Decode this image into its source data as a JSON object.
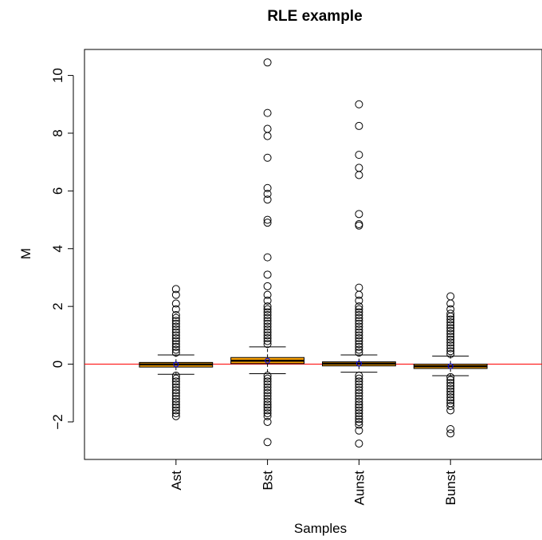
{
  "chart_data": {
    "type": "boxplot",
    "title": "RLE example",
    "xlabel": "Samples",
    "ylabel": "M",
    "ylim": [
      -3.3,
      10.9
    ],
    "xlim": [
      0,
      5
    ],
    "y_ticks": [
      -2,
      0,
      2,
      4,
      6,
      8,
      10
    ],
    "y_tick_labels": [
      "−2",
      "0",
      "2",
      "4",
      "6",
      "8",
      "10"
    ],
    "reference_line": {
      "y": 0,
      "color": "#ff0000"
    },
    "box_fill": "#ffa500",
    "median_color": "#000000",
    "mean_marker_color": "#0000ff",
    "categories": [
      "Ast",
      "Bst",
      "Aunst",
      "Bunst"
    ],
    "boxes": [
      {
        "name": "Ast",
        "whisker_low": -0.35,
        "q1": -0.1,
        "median": -0.01,
        "q3": 0.06,
        "whisker_high": 0.32,
        "outliers_high": [
          0.4,
          0.5,
          0.6,
          0.7,
          0.8,
          0.9,
          1.0,
          1.1,
          1.2,
          1.3,
          1.4,
          1.5,
          1.6,
          1.7,
          1.9,
          2.1,
          2.4,
          2.6
        ],
        "outliers_low": [
          -0.4,
          -0.5,
          -0.6,
          -0.7,
          -0.8,
          -0.9,
          -1.0,
          -1.1,
          -1.2,
          -1.3,
          -1.4,
          -1.5,
          -1.6,
          -1.7,
          -1.8
        ]
      },
      {
        "name": "Bst",
        "whisker_low": -0.33,
        "q1": 0.02,
        "median": 0.12,
        "q3": 0.23,
        "whisker_high": 0.6,
        "outliers_high": [
          0.7,
          0.8,
          0.9,
          1.0,
          1.1,
          1.2,
          1.3,
          1.4,
          1.5,
          1.6,
          1.7,
          1.8,
          1.9,
          2.0,
          2.2,
          2.4,
          2.7,
          3.1,
          3.7,
          4.9,
          5.0,
          5.7,
          5.9,
          6.1,
          7.15,
          7.9,
          8.15,
          8.7,
          10.45
        ],
        "outliers_low": [
          -0.4,
          -0.5,
          -0.6,
          -0.7,
          -0.8,
          -0.9,
          -1.0,
          -1.1,
          -1.2,
          -1.3,
          -1.4,
          -1.5,
          -1.6,
          -1.7,
          -1.8,
          -2.0,
          -2.7
        ]
      },
      {
        "name": "Aunst",
        "whisker_low": -0.28,
        "q1": -0.06,
        "median": 0.02,
        "q3": 0.08,
        "whisker_high": 0.32,
        "outliers_high": [
          0.4,
          0.5,
          0.6,
          0.7,
          0.8,
          0.9,
          1.0,
          1.1,
          1.2,
          1.3,
          1.4,
          1.5,
          1.6,
          1.7,
          1.8,
          1.9,
          2.0,
          2.2,
          2.4,
          2.65,
          4.8,
          4.85,
          5.2,
          6.55,
          6.8,
          7.25,
          8.25,
          9.0
        ],
        "outliers_low": [
          -0.4,
          -0.5,
          -0.6,
          -0.7,
          -0.8,
          -0.9,
          -1.0,
          -1.1,
          -1.2,
          -1.3,
          -1.4,
          -1.5,
          -1.6,
          -1.7,
          -1.8,
          -1.9,
          -2.0,
          -2.1,
          -2.3,
          -2.75
        ]
      },
      {
        "name": "Bunst",
        "whisker_low": -0.4,
        "q1": -0.15,
        "median": -0.07,
        "q3": 0.0,
        "whisker_high": 0.28,
        "outliers_high": [
          0.35,
          0.45,
          0.55,
          0.65,
          0.75,
          0.85,
          0.95,
          1.05,
          1.15,
          1.25,
          1.35,
          1.45,
          1.55,
          1.65,
          1.75,
          1.9,
          2.1,
          2.35
        ],
        "outliers_low": [
          -0.45,
          -0.55,
          -0.65,
          -0.75,
          -0.85,
          -0.95,
          -1.05,
          -1.15,
          -1.25,
          -1.35,
          -1.45,
          -1.6,
          -2.25,
          -2.4
        ]
      }
    ]
  }
}
